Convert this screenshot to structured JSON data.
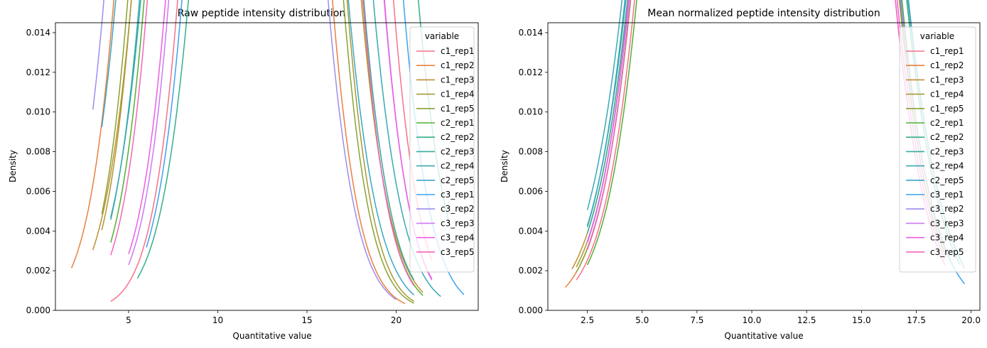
{
  "chart_data": [
    {
      "type": "line",
      "title": "Raw peptide intensity distribution",
      "xlabel": "Quantitative value",
      "ylabel": "Density",
      "xlim": [
        0.9,
        24.6
      ],
      "ylim": [
        0,
        0.0145
      ],
      "xticks": [
        5,
        10,
        15,
        20
      ],
      "yticks": [
        0.0,
        0.002,
        0.004,
        0.006,
        0.008,
        0.01,
        0.012,
        0.014
      ],
      "xtick_labels": [
        "5",
        "10",
        "15",
        "20"
      ],
      "ytick_labels": [
        "0.000",
        "0.002",
        "0.004",
        "0.006",
        "0.008",
        "0.010",
        "0.012",
        "0.014"
      ],
      "legend_title": "variable",
      "legend_position": "top-right",
      "grid": false,
      "series": [
        {
          "name": "c1_rep1",
          "color": "#f77189",
          "mean": 13.8,
          "sd": 2.9,
          "x_range": [
            4,
            22
          ]
        },
        {
          "name": "c1_rep2",
          "color": "#e9803d",
          "mean": 10.3,
          "sd": 2.95,
          "x_range": [
            1.8,
            20.5
          ]
        },
        {
          "name": "c1_rep3",
          "color": "#c38e32",
          "mean": 11.6,
          "sd": 3.15,
          "x_range": [
            3,
            21.5
          ]
        },
        {
          "name": "c1_rep4",
          "color": "#a59a32",
          "mean": 11.2,
          "sd": 2.9,
          "x_range": [
            3.5,
            21
          ]
        },
        {
          "name": "c1_rep5",
          "color": "#88a232",
          "mean": 11.0,
          "sd": 2.9,
          "x_range": [
            3.5,
            21
          ]
        },
        {
          "name": "c2_rep1",
          "color": "#4fb032",
          "mean": 12.0,
          "sd": 2.95,
          "x_range": [
            4,
            21.5
          ]
        },
        {
          "name": "c2_rep2",
          "color": "#34ae8a",
          "mean": 14.8,
          "sd": 3.15,
          "x_range": [
            5.5,
            23
          ]
        },
        {
          "name": "c2_rep3",
          "color": "#36ab9f",
          "mean": 11.9,
          "sd": 3.05,
          "x_range": [
            4,
            21
          ]
        },
        {
          "name": "c2_rep4",
          "color": "#38a9b2",
          "mean": 12.2,
          "sd": 3.2,
          "x_range": [
            4,
            22.5
          ]
        },
        {
          "name": "c2_rep5",
          "color": "#3aa6c6",
          "mean": 10.8,
          "sd": 3.2,
          "x_range": [
            3.5,
            21
          ]
        },
        {
          "name": "c3_rep1",
          "color": "#3ba3ec",
          "mean": 14.2,
          "sd": 3.0,
          "x_range": [
            6,
            23.8
          ]
        },
        {
          "name": "c3_rep2",
          "color": "#9b8dee",
          "mean": 9.9,
          "sd": 3.05,
          "x_range": [
            3,
            20
          ]
        },
        {
          "name": "c3_rep3",
          "color": "#cc79f4",
          "mean": 13.3,
          "sd": 2.9,
          "x_range": [
            5,
            22
          ]
        },
        {
          "name": "c3_rep4",
          "color": "#ec5de4",
          "mean": 13.2,
          "sd": 2.95,
          "x_range": [
            5,
            22
          ]
        },
        {
          "name": "c3_rep5",
          "color": "#f565bc",
          "mean": 12.1,
          "sd": 2.9,
          "x_range": [
            4,
            21
          ]
        }
      ]
    },
    {
      "type": "line",
      "title": "Mean normalized peptide intensity distribution",
      "xlabel": "Quantitative value",
      "ylabel": "Density",
      "xlim": [
        0.7,
        20.4
      ],
      "ylim": [
        0,
        0.0145
      ],
      "xticks": [
        2.5,
        5.0,
        7.5,
        10.0,
        12.5,
        15.0,
        17.5,
        20.0
      ],
      "yticks": [
        0.0,
        0.002,
        0.004,
        0.006,
        0.008,
        0.01,
        0.012,
        0.014
      ],
      "xtick_labels": [
        "2.5",
        "5.0",
        "7.5",
        "10.0",
        "12.5",
        "15.0",
        "17.5",
        "20.0"
      ],
      "ytick_labels": [
        "0.000",
        "0.002",
        "0.004",
        "0.006",
        "0.008",
        "0.010",
        "0.012",
        "0.014"
      ],
      "legend_title": "variable",
      "legend_position": "top-right",
      "grid": false,
      "series": [
        {
          "name": "c1_rep1",
          "color": "#f77189",
          "mean": 10.7,
          "sd": 2.9,
          "x_range": [
            2,
            18.5
          ]
        },
        {
          "name": "c1_rep2",
          "color": "#e9803d",
          "mean": 10.6,
          "sd": 2.95,
          "x_range": [
            1.5,
            18.8
          ]
        },
        {
          "name": "c1_rep3",
          "color": "#c38e32",
          "mean": 10.7,
          "sd": 3.1,
          "x_range": [
            1.8,
            19
          ]
        },
        {
          "name": "c1_rep4",
          "color": "#a59a32",
          "mean": 10.6,
          "sd": 3.0,
          "x_range": [
            2,
            19
          ]
        },
        {
          "name": "c1_rep5",
          "color": "#88a232",
          "mean": 10.6,
          "sd": 2.95,
          "x_range": [
            2,
            18.8
          ]
        },
        {
          "name": "c2_rep1",
          "color": "#4fb032",
          "mean": 10.8,
          "sd": 2.9,
          "x_range": [
            2.5,
            18.8
          ]
        },
        {
          "name": "c2_rep2",
          "color": "#34ae8a",
          "mean": 10.7,
          "sd": 3.1,
          "x_range": [
            2.5,
            19.5
          ]
        },
        {
          "name": "c2_rep3",
          "color": "#36ab9f",
          "mean": 10.5,
          "sd": 3.05,
          "x_range": [
            2.5,
            19
          ]
        },
        {
          "name": "c2_rep4",
          "color": "#38a9b2",
          "mean": 10.6,
          "sd": 3.2,
          "x_range": [
            2.5,
            19.5
          ]
        },
        {
          "name": "c2_rep5",
          "color": "#3aa6c6",
          "mean": 10.7,
          "sd": 3.15,
          "x_range": [
            2.5,
            19.7
          ]
        },
        {
          "name": "c3_rep1",
          "color": "#3ba3ec",
          "mean": 10.6,
          "sd": 3.0,
          "x_range": [
            2.5,
            19.7
          ]
        },
        {
          "name": "c3_rep2",
          "color": "#9b8dee",
          "mean": 10.6,
          "sd": 3.0,
          "x_range": [
            2.5,
            19
          ]
        },
        {
          "name": "c3_rep3",
          "color": "#cc79f4",
          "mean": 10.5,
          "sd": 2.9,
          "x_range": [
            2.5,
            18.8
          ]
        },
        {
          "name": "c3_rep4",
          "color": "#ec5de4",
          "mean": 10.5,
          "sd": 2.95,
          "x_range": [
            2.5,
            18.8
          ]
        },
        {
          "name": "c3_rep5",
          "color": "#f565bc",
          "mean": 10.5,
          "sd": 2.9,
          "x_range": [
            2.5,
            18.8
          ]
        }
      ]
    }
  ]
}
